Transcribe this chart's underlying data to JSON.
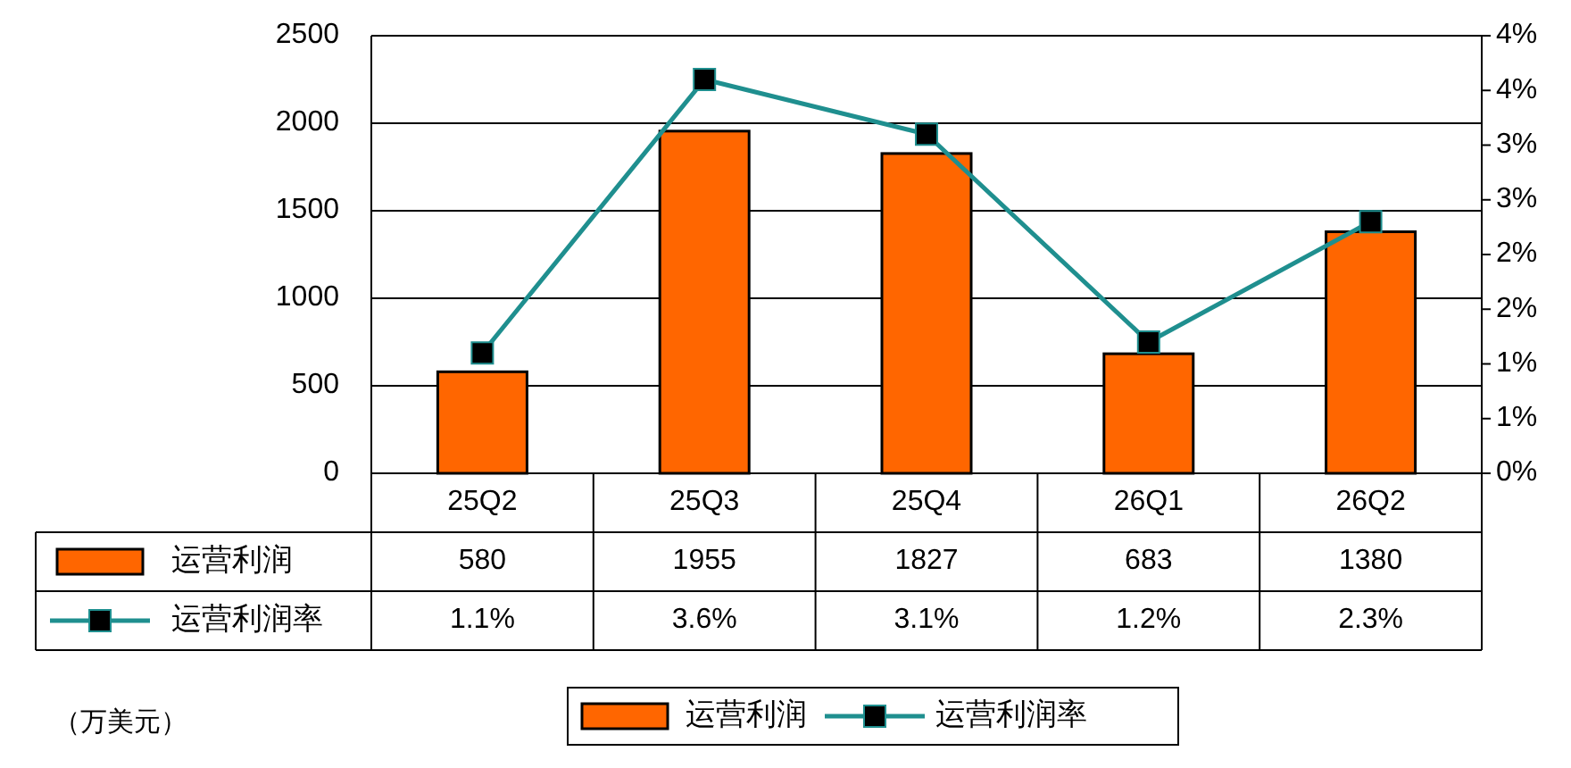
{
  "chart_data": {
    "type": "bar",
    "categories": [
      "25Q2",
      "25Q3",
      "25Q4",
      "26Q1",
      "26Q2"
    ],
    "series": [
      {
        "name": "运营利润",
        "color": "#ff6600",
        "values": [
          580,
          1955,
          1827,
          683,
          1380
        ],
        "value_labels": [
          "580",
          "1955",
          "1827",
          "683",
          "1380"
        ]
      },
      {
        "name": "运营利润率",
        "type": "line",
        "axis": "y2",
        "color": "#1f8f8f",
        "marker": "square",
        "values": [
          1.1,
          3.6,
          3.1,
          1.2,
          2.3
        ],
        "value_labels": [
          "1.1%",
          "3.6%",
          "3.1%",
          "1.2%",
          "2.3%"
        ]
      }
    ],
    "ylim": [
      0,
      2500
    ],
    "yticks": [
      0,
      500,
      1000,
      1500,
      2000,
      2500
    ],
    "y2lim": [
      0,
      4
    ],
    "y2ticks": [
      {
        "value": 0,
        "label": "0%"
      },
      {
        "value": 0.5,
        "label": "1%"
      },
      {
        "value": 1,
        "label": "1%"
      },
      {
        "value": 1.5,
        "label": "2%"
      },
      {
        "value": 2,
        "label": "2%"
      },
      {
        "value": 2.5,
        "label": "3%"
      },
      {
        "value": 3,
        "label": "3%"
      },
      {
        "value": 3.5,
        "label": "4%"
      },
      {
        "value": 4,
        "label": "4%"
      }
    ],
    "grid": "y",
    "legend": "bottom",
    "annotations": [
      "（万美元）"
    ]
  }
}
